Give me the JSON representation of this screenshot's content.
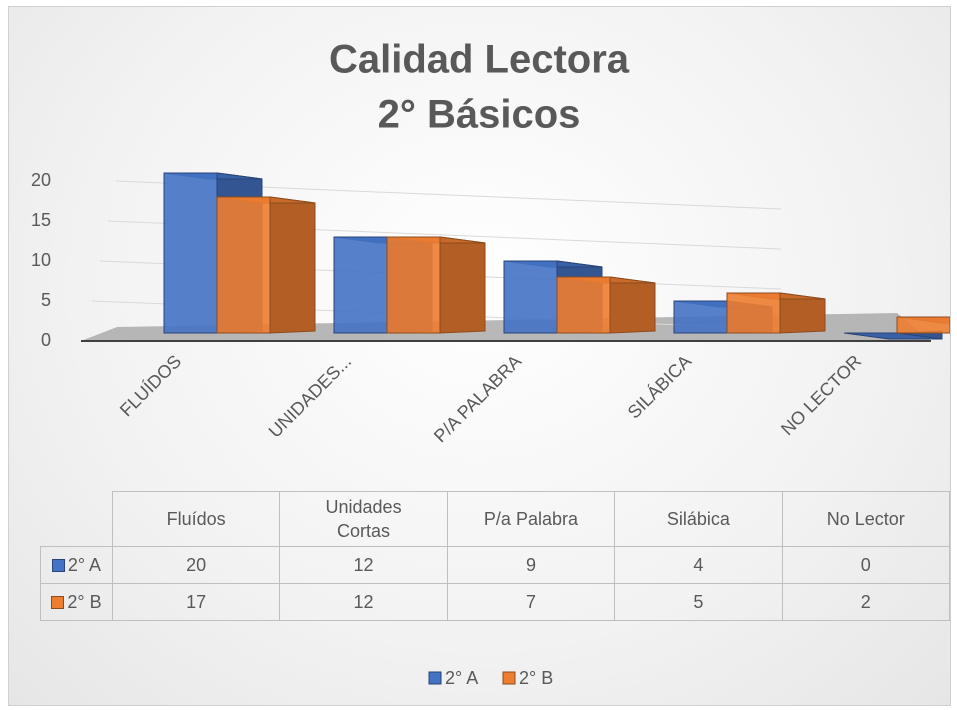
{
  "chart_data": {
    "type": "bar3d",
    "title": [
      "Calidad Lectora",
      "2° Básicos"
    ],
    "categories": [
      "FLUÍDOS",
      "UNIDADES...",
      "P/A PALABRA",
      "SILÁBICA",
      "NO LECTOR"
    ],
    "table_headers": [
      "Fluídos",
      "Unidades Cortas",
      "P/a Palabra",
      "Silábica",
      "No Lector"
    ],
    "series": [
      {
        "name": "2° A",
        "color": "#4472c4",
        "values": [
          20,
          12,
          9,
          4,
          0
        ]
      },
      {
        "name": "2° B",
        "color": "#ed7d31",
        "values": [
          17,
          12,
          7,
          5,
          2
        ]
      }
    ],
    "ylim": [
      0,
      20
    ],
    "yticks": [
      0,
      5,
      10,
      15,
      20
    ],
    "grid": true,
    "legend": "bottom"
  }
}
